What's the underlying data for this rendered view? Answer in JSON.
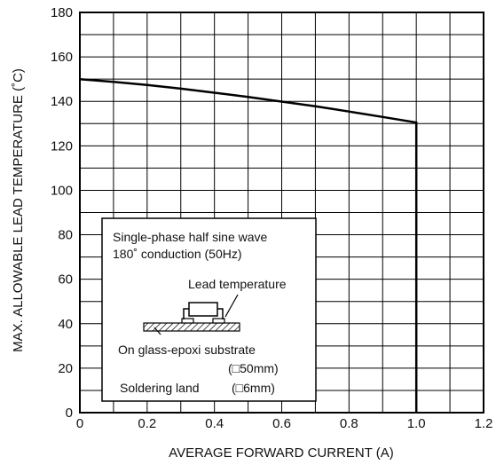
{
  "chart_data": {
    "type": "line",
    "xlabel": "AVERAGE FORWARD CURRENT (A)",
    "ylabel": "MAX. ALLOWABLE LEAD TEMPERATURE (˚C)",
    "xlim": [
      0,
      1.2
    ],
    "ylim": [
      0,
      180
    ],
    "x_ticks": [
      "0",
      "0.2",
      "0.4",
      "0.6",
      "0.8",
      "1.0",
      "1.2"
    ],
    "y_ticks": [
      "0",
      "20",
      "40",
      "60",
      "80",
      "100",
      "120",
      "140",
      "160",
      "180"
    ],
    "grid": true,
    "series": [
      {
        "x": [
          0,
          0.1,
          0.2,
          0.3,
          0.4,
          0.5,
          0.6,
          0.7,
          0.8,
          0.9,
          1.0,
          1.0
        ],
        "y": [
          150,
          148.8,
          147.4,
          145.7,
          143.9,
          142.0,
          139.9,
          137.8,
          135.4,
          133.0,
          130.5,
          0
        ]
      }
    ],
    "annotations": {
      "condition_line1": "Single-phase half sine wave",
      "condition_line2": "180˚ conduction (50Hz)",
      "lead_temp_label": "Lead temperature",
      "substrate_label": "On glass-epoxi substrate",
      "substrate_size": "(□50mm)",
      "land_label": "Soldering land",
      "land_size": "(□6mm)"
    }
  }
}
